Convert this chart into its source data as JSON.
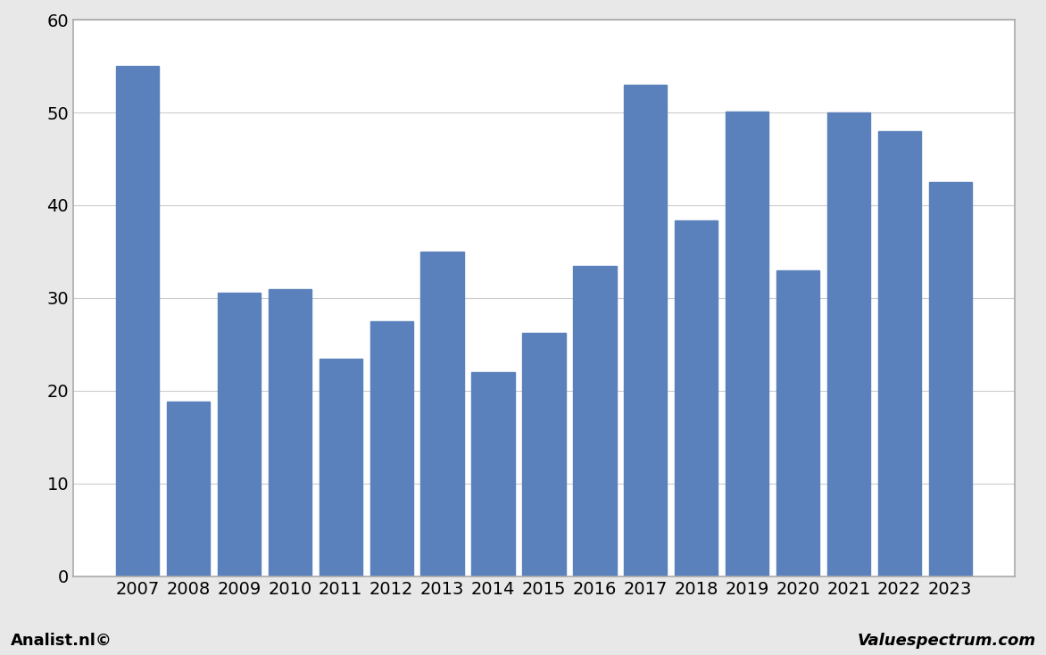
{
  "categories": [
    2007,
    2008,
    2009,
    2010,
    2011,
    2012,
    2013,
    2014,
    2015,
    2016,
    2017,
    2018,
    2019,
    2020,
    2021,
    2022,
    2023
  ],
  "values": [
    55.0,
    18.8,
    30.6,
    31.0,
    23.5,
    27.5,
    35.0,
    22.0,
    26.2,
    33.5,
    53.0,
    38.4,
    50.1,
    33.0,
    50.0,
    48.0,
    42.5
  ],
  "bar_color": "#5b81bc",
  "background_color": "#e8e8e8",
  "plot_background": "#ffffff",
  "ylim": [
    0,
    60
  ],
  "yticks": [
    0,
    10,
    20,
    30,
    40,
    50,
    60
  ],
  "grid_color": "#cccccc",
  "footer_left": "Analist.nl©",
  "footer_right": "Valuespectrum.com",
  "footer_fontsize": 13,
  "tick_fontsize": 14,
  "bar_width": 0.85
}
